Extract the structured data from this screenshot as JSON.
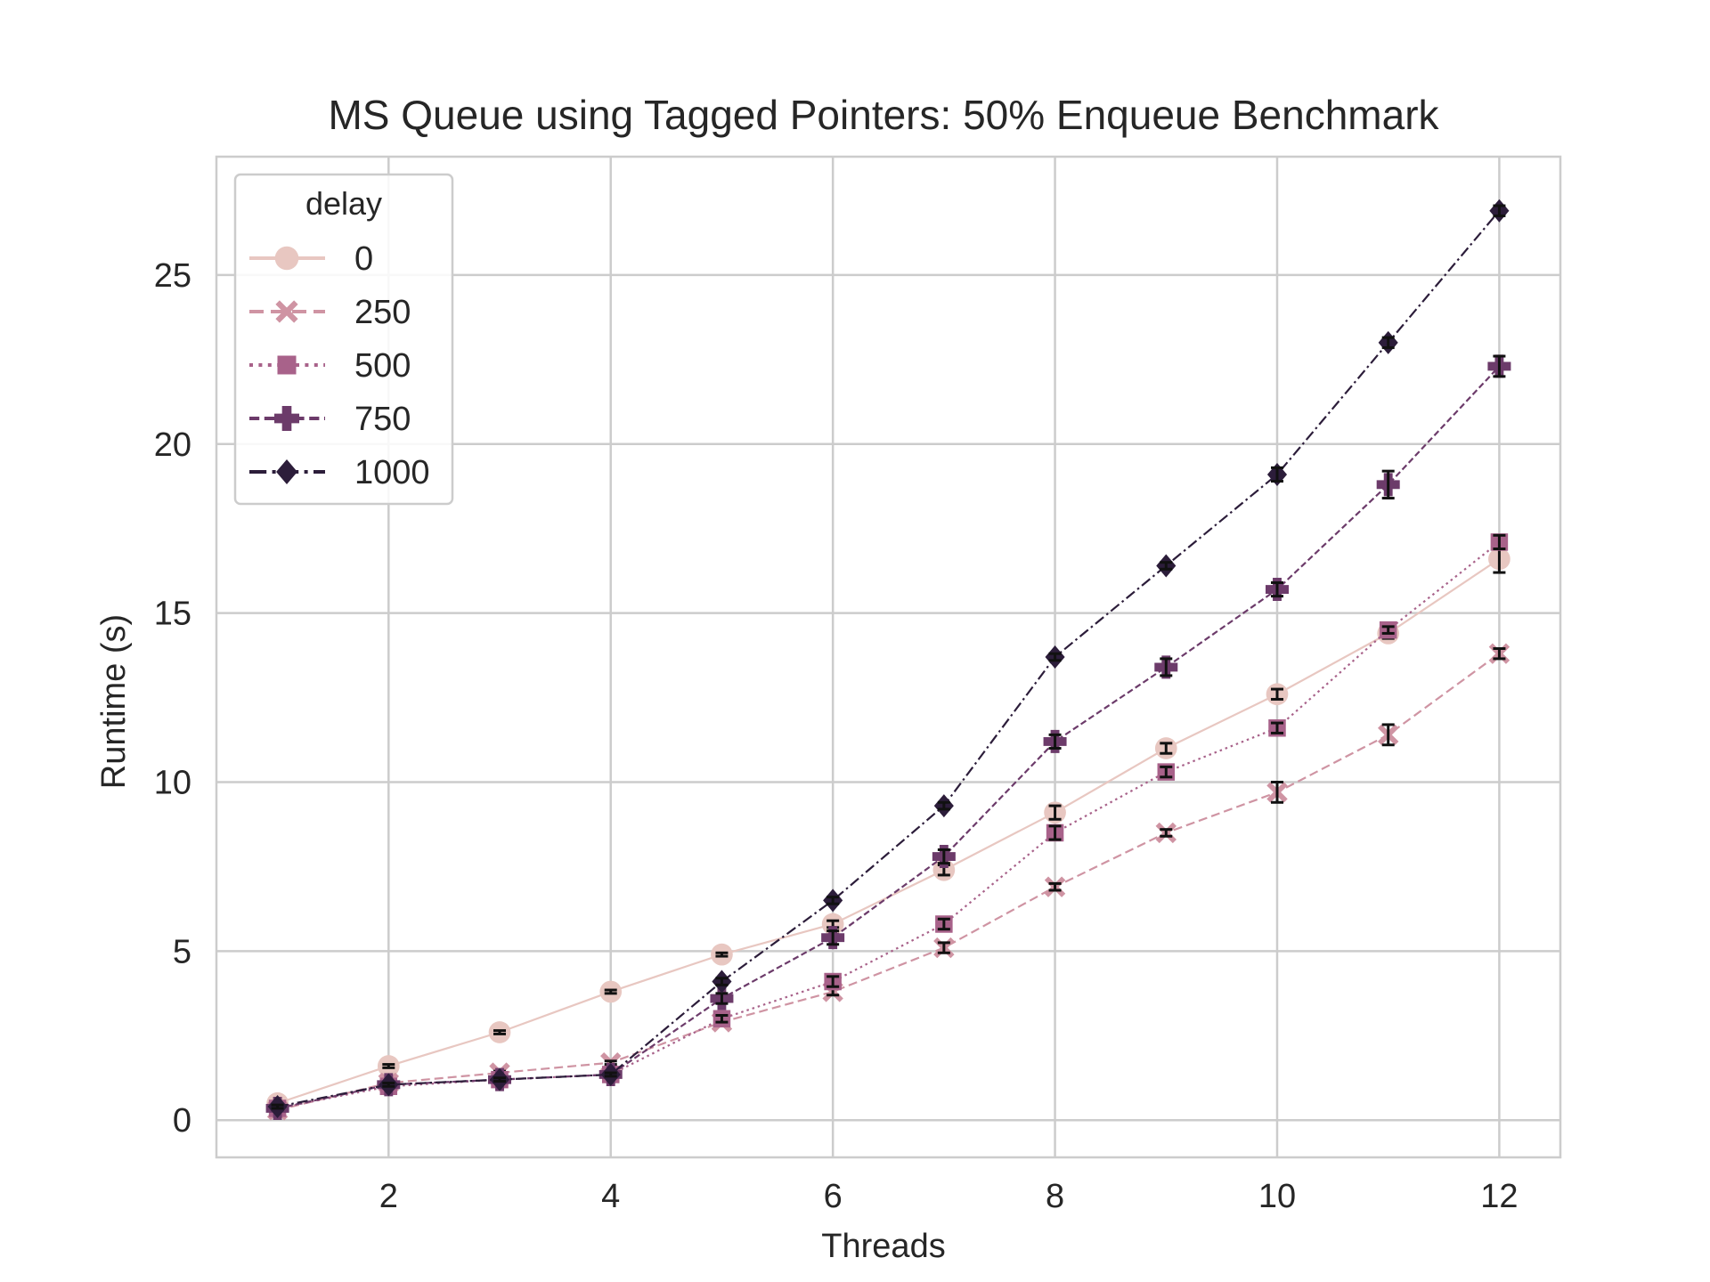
{
  "chart_data": {
    "type": "line",
    "title": "MS Queue using Tagged Pointers: 50% Enqueue Benchmark",
    "xlabel": "Threads",
    "ylabel": "Runtime (s)",
    "x": [
      1,
      2,
      3,
      4,
      5,
      6,
      7,
      8,
      9,
      10,
      11,
      12
    ],
    "xlim": [
      0.45,
      12.55
    ],
    "ylim": [
      -1.1,
      28.5
    ],
    "xticks": [
      2,
      4,
      6,
      8,
      10,
      12
    ],
    "yticks": [
      0,
      5,
      10,
      15,
      20,
      25
    ],
    "grid": true,
    "legend": {
      "title": "delay",
      "placement": "top-left"
    },
    "series": [
      {
        "name": "0",
        "color": "#e8c7c1",
        "dash": "solid",
        "marker": "circle",
        "values": [
          0.5,
          1.6,
          2.6,
          3.8,
          4.9,
          5.8,
          7.4,
          9.1,
          11.0,
          12.6,
          14.4,
          16.6
        ],
        "errors": [
          0.05,
          0.05,
          0.05,
          0.05,
          0.05,
          0.1,
          0.15,
          0.2,
          0.15,
          0.15,
          0.15,
          0.4
        ]
      },
      {
        "name": "250",
        "color": "#cf94a3",
        "dash": "dashed",
        "marker": "x",
        "values": [
          0.3,
          1.1,
          1.4,
          1.7,
          2.9,
          3.8,
          5.1,
          6.9,
          8.5,
          9.7,
          11.4,
          13.8
        ],
        "errors": [
          0.05,
          0.05,
          0.05,
          0.05,
          0.1,
          0.1,
          0.15,
          0.1,
          0.1,
          0.3,
          0.3,
          0.15
        ]
      },
      {
        "name": "500",
        "color": "#a8628a",
        "dash": "dotted",
        "marker": "square",
        "values": [
          0.35,
          1.0,
          1.2,
          1.35,
          3.0,
          4.1,
          5.8,
          8.5,
          10.3,
          11.6,
          14.5,
          17.1
        ],
        "errors": [
          0.05,
          0.05,
          0.05,
          0.05,
          0.1,
          0.15,
          0.15,
          0.2,
          0.15,
          0.15,
          0.1,
          0.2
        ]
      },
      {
        "name": "750",
        "color": "#6c3b6a",
        "dash": "dashed-short",
        "marker": "plus",
        "values": [
          0.35,
          1.05,
          1.2,
          1.35,
          3.6,
          5.4,
          7.8,
          11.2,
          13.4,
          15.7,
          18.8,
          22.3
        ],
        "errors": [
          0.05,
          0.05,
          0.05,
          0.05,
          0.15,
          0.2,
          0.2,
          0.2,
          0.25,
          0.2,
          0.4,
          0.3
        ]
      },
      {
        "name": "1000",
        "color": "#2c1d3a",
        "dash": "dashdot",
        "marker": "diamond",
        "values": [
          0.4,
          1.05,
          1.2,
          1.35,
          4.1,
          6.5,
          9.3,
          13.7,
          16.4,
          19.1,
          23.0,
          26.9
        ],
        "errors": [
          0.05,
          0.05,
          0.05,
          0.05,
          0.1,
          0.1,
          0.1,
          0.1,
          0.1,
          0.2,
          0.15,
          0.15
        ]
      }
    ]
  }
}
